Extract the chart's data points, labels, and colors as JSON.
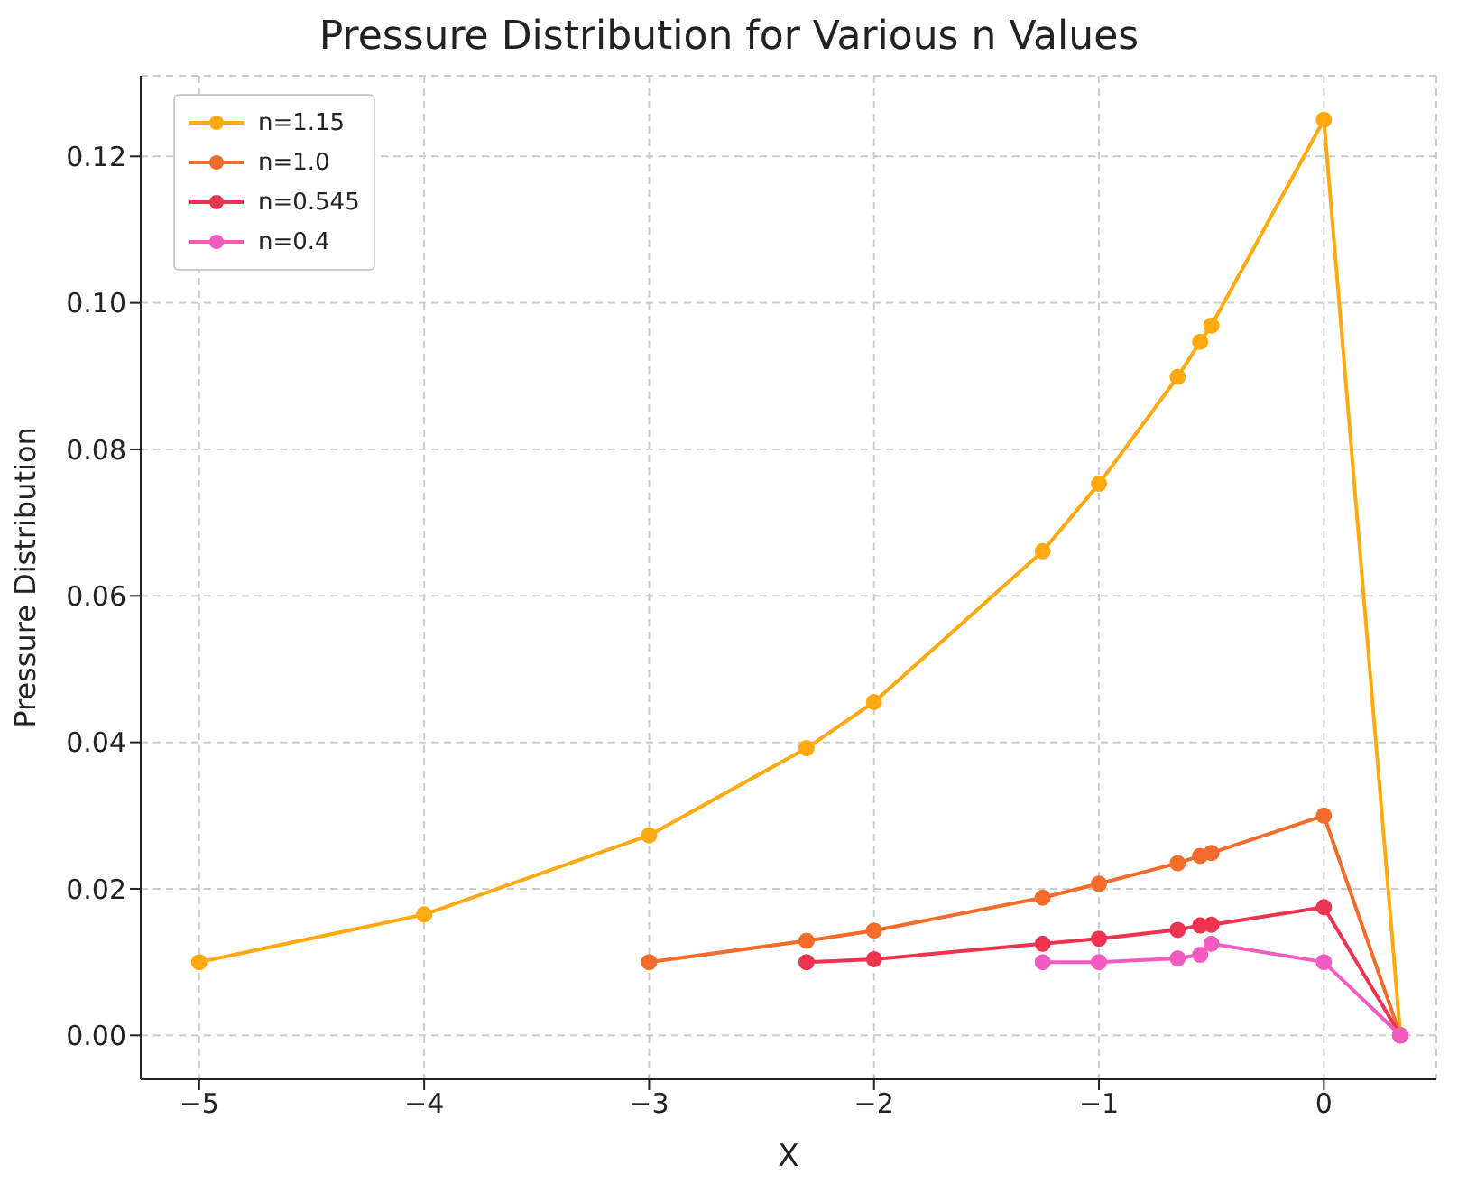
{
  "chart_data": {
    "type": "line",
    "title": "Pressure Distribution for Various n Values",
    "xlabel": "X",
    "ylabel": "Pressure Distribution",
    "xlim": [
      -5.26,
      0.5
    ],
    "xticks": [
      {
        "value": -5,
        "label": "−5"
      },
      {
        "value": -4,
        "label": "−4"
      },
      {
        "value": -3,
        "label": "−3"
      },
      {
        "value": -2,
        "label": "−2"
      },
      {
        "value": -1,
        "label": "−1"
      },
      0
    ],
    "ylim": [
      -0.006,
      0.131
    ],
    "yticks": [
      {
        "value": 0,
        "label": "0.00"
      },
      {
        "value": 0.02,
        "label": "0.02"
      },
      {
        "value": 0.04,
        "label": "0.04"
      },
      {
        "value": 0.06,
        "label": "0.06"
      },
      {
        "value": 0.08,
        "label": "0.08"
      },
      {
        "value": 0.1,
        "label": "0.10"
      },
      {
        "value": 0.12,
        "label": "0.12"
      }
    ],
    "grid": true,
    "legend": "top left",
    "marker": "circle",
    "line_style": "solid",
    "series": [
      {
        "name": "n=1.15",
        "color": "#ffa90f",
        "x": [
          -5,
          -4,
          -3,
          -2.3,
          -2,
          -1.25,
          -1,
          -0.65,
          -0.55,
          -0.5,
          0,
          0.34
        ],
        "values": [
          0.01,
          0.0165,
          0.0273,
          0.0392,
          0.0455,
          0.0661,
          0.0753,
          0.0899,
          0.0947,
          0.0969,
          0.125,
          0
        ]
      },
      {
        "name": "n=1.0",
        "color": "#f46b2a",
        "x": [
          -3,
          -2.3,
          -2,
          -1.25,
          -1,
          -0.65,
          -0.55,
          -0.5,
          0,
          0.34
        ],
        "values": [
          0.01,
          0.0129,
          0.0143,
          0.0188,
          0.0207,
          0.0235,
          0.0245,
          0.0249,
          0.03,
          0
        ]
      },
      {
        "name": "n=0.545",
        "color": "#ee3350",
        "x": [
          -2.3,
          -2,
          -1.25,
          -1,
          -0.65,
          -0.55,
          -0.5,
          0,
          0.34
        ],
        "values": [
          0.01,
          0.0104,
          0.0125,
          0.0132,
          0.0144,
          0.015,
          0.0151,
          0.0175,
          0
        ]
      },
      {
        "name": "n=0.4",
        "color": "#f25cc0",
        "x": [
          -1.25,
          -1,
          -0.65,
          -0.55,
          -0.5,
          0,
          0.34
        ],
        "values": [
          0.01,
          0.01,
          0.0105,
          0.011,
          0.0125,
          0.01,
          0
        ]
      }
    ]
  }
}
